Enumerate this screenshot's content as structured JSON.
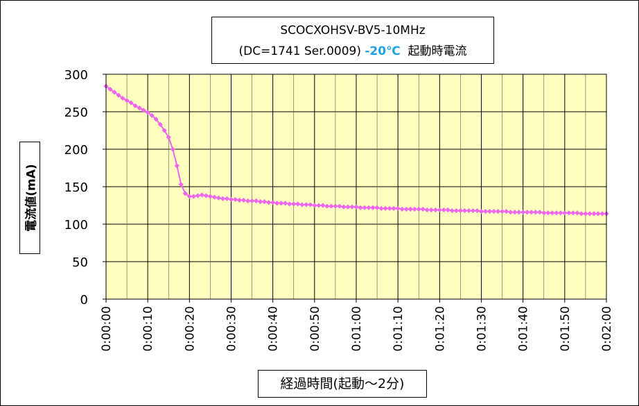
{
  "chart_data": {
    "type": "line",
    "title_line1": "SCOCXOHSV-BV5-10MHz",
    "title_line2_prefix": "(DC=1741 Ser.0009)",
    "title_temp": "-20℃",
    "title_line2_suffix": "起動時電流",
    "ylabel": "電流値(mA)",
    "xlabel": "経過時間(起動～2分)",
    "ylim": [
      0,
      300
    ],
    "yticks": [
      "0",
      "50",
      "100",
      "150",
      "200",
      "250",
      "300"
    ],
    "xlim_seconds": [
      0,
      120
    ],
    "xticks": [
      "0:00:00",
      "0:00:10",
      "0:00:20",
      "0:00:30",
      "0:00:40",
      "0:00:50",
      "0:01:00",
      "0:01:10",
      "0:01:20",
      "0:01:30",
      "0:01:40",
      "0:01:50",
      "0:02:00"
    ],
    "grid": true,
    "legend": "none",
    "series": [
      {
        "color": "#ee66ee",
        "x_seconds": [
          0,
          1,
          2,
          3,
          4,
          5,
          6,
          7,
          8,
          9,
          10,
          11,
          12,
          13,
          14,
          15,
          16,
          17,
          18,
          19,
          20,
          21,
          22,
          23,
          24,
          25,
          26,
          27,
          28,
          29,
          30,
          31,
          32,
          33,
          34,
          35,
          36,
          37,
          38,
          39,
          40,
          41,
          42,
          43,
          44,
          45,
          46,
          47,
          48,
          49,
          50,
          51,
          52,
          53,
          54,
          55,
          56,
          57,
          58,
          59,
          60,
          61,
          62,
          63,
          64,
          65,
          66,
          67,
          68,
          69,
          70,
          71,
          72,
          73,
          74,
          75,
          76,
          77,
          78,
          79,
          80,
          81,
          82,
          83,
          84,
          85,
          86,
          87,
          88,
          89,
          90,
          91,
          92,
          93,
          94,
          95,
          96,
          97,
          98,
          99,
          100,
          101,
          102,
          103,
          104,
          105,
          106,
          107,
          108,
          109,
          110,
          111,
          112,
          113,
          114,
          115,
          116,
          117,
          118,
          119,
          120
        ],
        "values": [
          284,
          280,
          276,
          272,
          268,
          265,
          262,
          258,
          255,
          252,
          249,
          245,
          240,
          233,
          225,
          216,
          200,
          178,
          153,
          141,
          137,
          137,
          138,
          139,
          138,
          137,
          136,
          135,
          134,
          134,
          133,
          133,
          132,
          132,
          131,
          131,
          131,
          130,
          130,
          129,
          129,
          128,
          128,
          128,
          127,
          127,
          127,
          126,
          126,
          126,
          125,
          125,
          125,
          124,
          124,
          124,
          124,
          123,
          123,
          123,
          123,
          122,
          122,
          122,
          122,
          122,
          121,
          121,
          121,
          121,
          121,
          120,
          120,
          120,
          120,
          120,
          120,
          119,
          119,
          119,
          119,
          119,
          119,
          118,
          118,
          118,
          118,
          118,
          118,
          118,
          117,
          117,
          117,
          117,
          117,
          117,
          117,
          116,
          116,
          116,
          116,
          116,
          116,
          116,
          116,
          115,
          115,
          115,
          115,
          115,
          115,
          115,
          115,
          115,
          114,
          114,
          114,
          114,
          114,
          114,
          114
        ]
      }
    ]
  }
}
